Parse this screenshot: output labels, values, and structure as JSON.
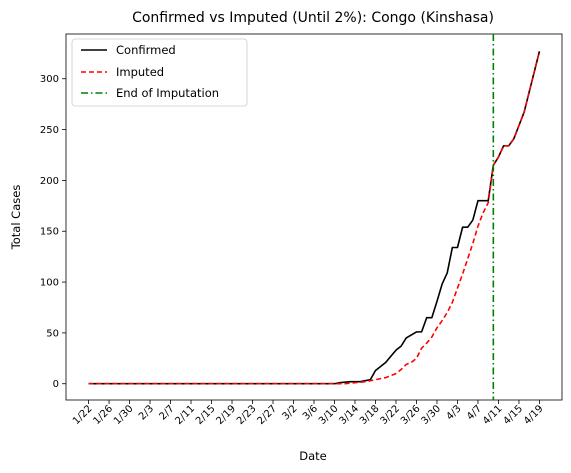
{
  "chart_data": {
    "type": "line",
    "title": "Confirmed vs Imputed (Until 2%): Congo (Kinshasa)",
    "xlabel": "Date",
    "ylabel": "Total Cases",
    "x_start_date": "2020-01-22",
    "xticks": [
      "1/22",
      "1/26",
      "1/30",
      "2/3",
      "2/7",
      "2/11",
      "2/15",
      "2/19",
      "2/23",
      "2/27",
      "3/2",
      "3/6",
      "3/10",
      "3/14",
      "3/18",
      "3/22",
      "3/26",
      "3/30",
      "4/3",
      "4/7",
      "4/11",
      "4/15",
      "4/19"
    ],
    "xtick_days": [
      0,
      4,
      8,
      12,
      16,
      20,
      24,
      28,
      32,
      36,
      40,
      44,
      48,
      52,
      56,
      60,
      64,
      68,
      72,
      76,
      80,
      84,
      88
    ],
    "xlim_days": [
      -4.4,
      92.4
    ],
    "ylim": [
      -16,
      344
    ],
    "yticks": [
      0,
      50,
      100,
      150,
      200,
      250,
      300
    ],
    "grid": false,
    "legend_position": "upper-left",
    "series": [
      {
        "name": "Confirmed",
        "color": "#000000",
        "style": "solid",
        "x_days": [
          0,
          48,
          49,
          51,
          53,
          54,
          55,
          56,
          57,
          58,
          59,
          60,
          61,
          62,
          63,
          64,
          65,
          66,
          67,
          68,
          69,
          70,
          71,
          72,
          73,
          74,
          75,
          76,
          77,
          78,
          79,
          80,
          81,
          82,
          83,
          84,
          85,
          86,
          87,
          88
        ],
        "values": [
          0,
          0,
          1,
          2,
          2,
          3,
          4,
          13,
          17,
          21,
          27,
          33,
          37,
          45,
          48,
          51,
          51,
          65,
          65,
          81,
          98,
          109,
          134,
          134,
          154,
          154,
          161,
          180,
          180,
          180,
          215,
          223,
          234,
          234,
          241,
          254,
          267,
          287,
          307,
          327
        ]
      },
      {
        "name": "Imputed",
        "color": "#ff0000",
        "style": "dashed",
        "x_days": [
          0,
          50,
          52,
          54,
          55,
          56,
          57,
          58,
          59,
          60,
          61,
          62,
          63,
          64,
          65,
          66,
          67,
          68,
          69,
          70,
          71,
          72,
          73,
          74,
          75,
          76,
          77,
          78,
          79,
          80,
          81,
          82,
          83,
          84,
          85,
          86,
          87,
          88
        ],
        "values": [
          0,
          0,
          1,
          2,
          3,
          4,
          5,
          6,
          8,
          10,
          14,
          19,
          21,
          25,
          35,
          40,
          46,
          55,
          62,
          70,
          80,
          94,
          108,
          123,
          138,
          155,
          168,
          178,
          215,
          223,
          234,
          234,
          241,
          254,
          267,
          287,
          307,
          327
        ]
      },
      {
        "name": "End of Imputation",
        "color": "#008000",
        "style": "dashdot",
        "vline_day": 79
      }
    ]
  }
}
